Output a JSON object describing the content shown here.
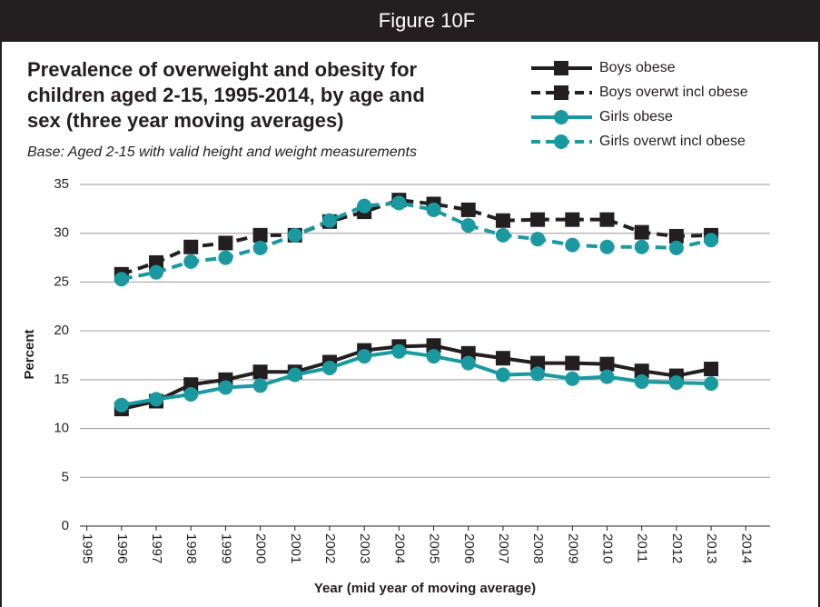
{
  "chart_data": {
    "type": "line",
    "header": "Figure 10F",
    "title": [
      "Prevalence of overweight and obesity for",
      "children aged 2-15, 1995-2014, by age and",
      "sex (three year moving averages)"
    ],
    "subtitle": "Base: Aged 2-15 with valid height and weight measurements",
    "y_label": "Percent",
    "x_label": "Year (mid year of moving average)",
    "x": [
      1996,
      1997,
      1998,
      1999,
      2000,
      2001,
      2002,
      2003,
      2004,
      2005,
      2006,
      2007,
      2008,
      2009,
      2010,
      2011,
      2012,
      2013
    ],
    "xlim": [
      1994.8,
      2014.7
    ],
    "xticks": [
      1995,
      1996,
      1997,
      1998,
      1999,
      2000,
      2001,
      2002,
      2003,
      2004,
      2005,
      2006,
      2007,
      2008,
      2009,
      2010,
      2011,
      2012,
      2013,
      2014
    ],
    "ylim": [
      0,
      35
    ],
    "yticks": [
      0,
      5,
      10,
      15,
      20,
      25,
      30,
      35
    ],
    "grid": true,
    "series": [
      {
        "name": "Boys obese",
        "color": "#231f20",
        "style": "solid",
        "marker": "square",
        "values": [
          12.0,
          12.8,
          14.5,
          15.0,
          15.8,
          15.8,
          16.8,
          18.0,
          18.4,
          18.5,
          17.7,
          17.2,
          16.7,
          16.7,
          16.6,
          15.9,
          15.4,
          16.1
        ]
      },
      {
        "name": "Boys overwt incl obese",
        "color": "#231f20",
        "style": "dashed",
        "marker": "square",
        "values": [
          25.8,
          27.0,
          28.6,
          29.0,
          29.8,
          29.8,
          31.2,
          32.2,
          33.4,
          33.0,
          32.4,
          31.3,
          31.4,
          31.4,
          31.4,
          30.1,
          29.7,
          29.8
        ]
      },
      {
        "name": "Girls obese",
        "color": "#1a9aa0",
        "style": "solid",
        "marker": "circle",
        "values": [
          12.4,
          13.0,
          13.5,
          14.2,
          14.4,
          15.5,
          16.2,
          17.4,
          17.9,
          17.4,
          16.7,
          15.5,
          15.6,
          15.1,
          15.3,
          14.8,
          14.7,
          14.6
        ]
      },
      {
        "name": "Girls overwt incl obese",
        "color": "#1a9aa0",
        "style": "dashed",
        "marker": "circle",
        "values": [
          25.3,
          26.0,
          27.1,
          27.5,
          28.5,
          29.8,
          31.3,
          32.8,
          33.1,
          32.4,
          30.8,
          29.8,
          29.4,
          28.8,
          28.6,
          28.6,
          28.5,
          29.3
        ]
      }
    ]
  }
}
